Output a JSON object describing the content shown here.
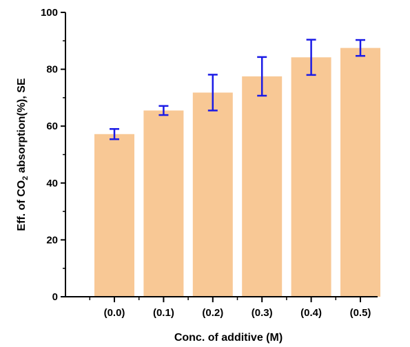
{
  "chart_data": {
    "type": "bar",
    "title": "",
    "xlabel": "Conc. of additive (M)",
    "ylabel": {
      "before": "Eff. of CO",
      "subscript": "2",
      "after": " absorption(%), SE"
    },
    "categories": [
      "(0.0)",
      "(0.1)",
      "(0.2)",
      "(0.3)",
      "(0.4)",
      "(0.5)"
    ],
    "values": [
      57.2,
      65.5,
      71.8,
      77.5,
      84.2,
      87.5
    ],
    "errors": [
      1.8,
      1.6,
      6.3,
      6.8,
      6.2,
      2.8
    ],
    "ylim": [
      0,
      100
    ],
    "yticks": [
      "0",
      "20",
      "40",
      "60",
      "80",
      "100"
    ],
    "grid": false,
    "legend": "none",
    "bar_color": "#f8c895",
    "error_color": "#1a1ae6"
  }
}
